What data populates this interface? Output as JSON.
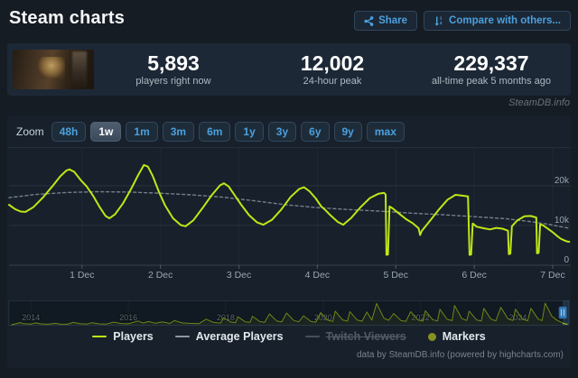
{
  "header": {
    "title": "Steam charts",
    "share_label": "Share",
    "compare_label": "Compare with others..."
  },
  "stats": {
    "items": [
      {
        "value": "5,893",
        "label": "players right now"
      },
      {
        "value": "12,002",
        "label": "24-hour peak"
      },
      {
        "value": "229,337",
        "label": "all-time peak 5 months ago"
      }
    ]
  },
  "watermark": "SteamDB.info",
  "toolbar": {
    "zoom_label": "Zoom",
    "ranges": [
      "48h",
      "1w",
      "1m",
      "3m",
      "6m",
      "1y",
      "3y",
      "6y",
      "9y",
      "max"
    ],
    "selected": "1w"
  },
  "legend": {
    "items": [
      {
        "label": "Players",
        "color": "#c0e616",
        "type": "line",
        "enabled": true
      },
      {
        "label": "Average Players",
        "color": "#8d99a3",
        "type": "line",
        "enabled": true
      },
      {
        "label": "Twitch Viewers",
        "color": "#46505a",
        "type": "line",
        "enabled": false
      },
      {
        "label": "Markers",
        "color": "#859222",
        "type": "circle",
        "enabled": true
      }
    ]
  },
  "footer": {
    "credit": "data by SteamDB.info (powered by highcharts.com)"
  },
  "colors": {
    "players_line": "#c0e616",
    "average_line": "#8d99a3",
    "grid": "rgba(255,255,255,0.08)",
    "axis_label": "#9aa6b0",
    "accent_blue": "#4ba0dd"
  },
  "chart_data": [
    {
      "type": "line",
      "id": "main",
      "x_unit": "days since 1 Dec 00:00",
      "xlim": [
        -0.93,
        6.23
      ],
      "ylim": [
        0,
        29500
      ],
      "x_ticks": [
        {
          "t": 0,
          "label": "1 Dec"
        },
        {
          "t": 1,
          "label": "2 Dec"
        },
        {
          "t": 2,
          "label": "3 Dec"
        },
        {
          "t": 3,
          "label": "4 Dec"
        },
        {
          "t": 4,
          "label": "5 Dec"
        },
        {
          "t": 5,
          "label": "6 Dec"
        },
        {
          "t": 6,
          "label": "7 Dec"
        }
      ],
      "y_ticks": [
        {
          "v": 0,
          "label": "0"
        },
        {
          "v": 10000,
          "label": "10k"
        },
        {
          "v": 20000,
          "label": "20k"
        }
      ],
      "series": [
        {
          "name": "Players",
          "color": "#c0e616",
          "width": 2,
          "dash": null,
          "points": [
            [
              -0.93,
              15200
            ],
            [
              -0.85,
              14100
            ],
            [
              -0.78,
              13500
            ],
            [
              -0.72,
              13400
            ],
            [
              -0.62,
              14600
            ],
            [
              -0.5,
              17000
            ],
            [
              -0.38,
              19800
            ],
            [
              -0.28,
              22300
            ],
            [
              -0.2,
              23800
            ],
            [
              -0.16,
              24100
            ],
            [
              -0.1,
              23500
            ],
            [
              -0.02,
              21500
            ],
            [
              0.06,
              19800
            ],
            [
              0.14,
              17500
            ],
            [
              0.22,
              14800
            ],
            [
              0.3,
              12400
            ],
            [
              0.35,
              11800
            ],
            [
              0.42,
              12800
            ],
            [
              0.52,
              15500
            ],
            [
              0.62,
              19000
            ],
            [
              0.72,
              22800
            ],
            [
              0.79,
              25200
            ],
            [
              0.84,
              24800
            ],
            [
              0.9,
              22500
            ],
            [
              0.98,
              18500
            ],
            [
              1.06,
              15000
            ],
            [
              1.16,
              11800
            ],
            [
              1.26,
              10100
            ],
            [
              1.32,
              9800
            ],
            [
              1.42,
              11300
            ],
            [
              1.54,
              14500
            ],
            [
              1.66,
              17800
            ],
            [
              1.76,
              20100
            ],
            [
              1.81,
              20600
            ],
            [
              1.87,
              19800
            ],
            [
              1.95,
              17500
            ],
            [
              2.03,
              15200
            ],
            [
              2.13,
              12600
            ],
            [
              2.23,
              10800
            ],
            [
              2.31,
              10200
            ],
            [
              2.42,
              11400
            ],
            [
              2.54,
              14000
            ],
            [
              2.66,
              17200
            ],
            [
              2.77,
              19200
            ],
            [
              2.83,
              19600
            ],
            [
              2.9,
              18600
            ],
            [
              2.98,
              16800
            ],
            [
              3.05,
              14800
            ],
            [
              3.1,
              13900
            ],
            [
              3.17,
              12500
            ],
            [
              3.26,
              10900
            ],
            [
              3.33,
              10200
            ],
            [
              3.43,
              11900
            ],
            [
              3.55,
              14600
            ],
            [
              3.67,
              16900
            ],
            [
              3.78,
              18000
            ],
            [
              3.85,
              18200
            ],
            [
              3.87,
              17800
            ],
            [
              3.88,
              2600
            ],
            [
              3.9,
              2700
            ],
            [
              3.92,
              14800
            ],
            [
              3.96,
              14300
            ],
            [
              4.04,
              13000
            ],
            [
              4.13,
              11600
            ],
            [
              4.22,
              10500
            ],
            [
              4.29,
              9300
            ],
            [
              4.31,
              7600
            ],
            [
              4.33,
              8600
            ],
            [
              4.42,
              10800
            ],
            [
              4.54,
              13800
            ],
            [
              4.66,
              16500
            ],
            [
              4.76,
              17700
            ],
            [
              4.85,
              17500
            ],
            [
              4.92,
              17300
            ],
            [
              4.94,
              2600
            ],
            [
              4.96,
              2700
            ],
            [
              4.98,
              10500
            ],
            [
              5.03,
              9700
            ],
            [
              5.12,
              9300
            ],
            [
              5.2,
              9000
            ],
            [
              5.28,
              9400
            ],
            [
              5.36,
              9200
            ],
            [
              5.43,
              8700
            ],
            [
              5.44,
              2800
            ],
            [
              5.46,
              2900
            ],
            [
              5.48,
              9800
            ],
            [
              5.55,
              11300
            ],
            [
              5.64,
              12300
            ],
            [
              5.72,
              12400
            ],
            [
              5.79,
              12000
            ],
            [
              5.8,
              3000
            ],
            [
              5.82,
              3100
            ],
            [
              5.84,
              10300
            ],
            [
              5.88,
              10000
            ],
            [
              5.93,
              9300
            ],
            [
              6.0,
              8300
            ],
            [
              6.06,
              7300
            ],
            [
              6.1,
              6700
            ],
            [
              6.14,
              6300
            ],
            [
              6.18,
              6000
            ],
            [
              6.21,
              5900
            ]
          ]
        },
        {
          "name": "Average Players",
          "color": "#8d99a3",
          "width": 1.4,
          "dash": "3,3",
          "points": [
            [
              -0.93,
              17000
            ],
            [
              -0.6,
              17800
            ],
            [
              -0.2,
              18300
            ],
            [
              0.2,
              18500
            ],
            [
              0.6,
              18400
            ],
            [
              1.0,
              18100
            ],
            [
              1.4,
              17700
            ],
            [
              1.8,
              17100
            ],
            [
              2.2,
              16200
            ],
            [
              2.6,
              15200
            ],
            [
              3.0,
              14500
            ],
            [
              3.4,
              14000
            ],
            [
              3.8,
              13600
            ],
            [
              4.2,
              13100
            ],
            [
              4.6,
              12700
            ],
            [
              5.0,
              12200
            ],
            [
              5.4,
              11700
            ],
            [
              5.7,
              11000
            ],
            [
              5.95,
              10300
            ],
            [
              6.1,
              9700
            ],
            [
              6.21,
              9300
            ]
          ]
        }
      ]
    },
    {
      "type": "area",
      "id": "navigator",
      "x_unit": "year",
      "xlim": [
        2013.55,
        2025.05
      ],
      "ylim": [
        0,
        240000
      ],
      "x_ticks": [
        {
          "t": 2014,
          "label": "2014"
        },
        {
          "t": 2016,
          "label": "2016"
        },
        {
          "t": 2018,
          "label": "2018"
        },
        {
          "t": 2020,
          "label": "2020"
        },
        {
          "t": 2022,
          "label": "2022"
        },
        {
          "t": 2024,
          "label": "2024"
        }
      ],
      "selected_range": {
        "from": 2024.92,
        "to": 2025.05
      },
      "series": [
        {
          "name": "Players (all time)",
          "color": "#c0e616",
          "width": 1,
          "points": [
            [
              2013.6,
              2000
            ],
            [
              2013.65,
              6000
            ],
            [
              2013.78,
              23000
            ],
            [
              2013.85,
              12000
            ],
            [
              2014.0,
              8000
            ],
            [
              2014.1,
              20000
            ],
            [
              2014.2,
              10000
            ],
            [
              2014.35,
              6000
            ],
            [
              2014.5,
              15000
            ],
            [
              2014.6,
              8000
            ],
            [
              2014.75,
              6000
            ],
            [
              2014.87,
              25000
            ],
            [
              2015.0,
              12000
            ],
            [
              2015.15,
              8000
            ],
            [
              2015.25,
              22000
            ],
            [
              2015.4,
              10000
            ],
            [
              2015.55,
              8000
            ],
            [
              2015.7,
              28000
            ],
            [
              2015.85,
              13000
            ],
            [
              2016.0,
              10000
            ],
            [
              2016.2,
              40000
            ],
            [
              2016.3,
              18000
            ],
            [
              2016.42,
              35000
            ],
            [
              2016.55,
              16000
            ],
            [
              2016.7,
              30000
            ],
            [
              2016.85,
              14000
            ],
            [
              2016.95,
              45000
            ],
            [
              2017.1,
              20000
            ],
            [
              2017.25,
              15000
            ],
            [
              2017.45,
              12000
            ],
            [
              2017.6,
              60000
            ],
            [
              2017.75,
              25000
            ],
            [
              2017.9,
              18000
            ],
            [
              2017.95,
              75000
            ],
            [
              2018.1,
              30000
            ],
            [
              2018.2,
              22000
            ],
            [
              2018.25,
              85000
            ],
            [
              2018.4,
              32000
            ],
            [
              2018.5,
              26000
            ],
            [
              2018.55,
              90000
            ],
            [
              2018.7,
              34000
            ],
            [
              2018.8,
              26000
            ],
            [
              2018.9,
              115000
            ],
            [
              2019.05,
              40000
            ],
            [
              2019.15,
              30000
            ],
            [
              2019.25,
              125000
            ],
            [
              2019.4,
              45000
            ],
            [
              2019.5,
              32000
            ],
            [
              2019.6,
              95000
            ],
            [
              2019.75,
              35000
            ],
            [
              2019.85,
              28000
            ],
            [
              2019.95,
              130000
            ],
            [
              2020.1,
              48000
            ],
            [
              2020.2,
              36000
            ],
            [
              2020.25,
              145000
            ],
            [
              2020.4,
              52000
            ],
            [
              2020.5,
              38000
            ],
            [
              2020.55,
              140000
            ],
            [
              2020.7,
              50000
            ],
            [
              2020.8,
              38000
            ],
            [
              2020.9,
              135000
            ],
            [
              2021.0,
              50000
            ],
            [
              2021.1,
              228000
            ],
            [
              2021.25,
              70000
            ],
            [
              2021.35,
              48000
            ],
            [
              2021.45,
              120000
            ],
            [
              2021.6,
              45000
            ],
            [
              2021.7,
              36000
            ],
            [
              2021.8,
              140000
            ],
            [
              2021.95,
              50000
            ],
            [
              2022.05,
              38000
            ],
            [
              2022.1,
              150000
            ],
            [
              2022.25,
              55000
            ],
            [
              2022.35,
              40000
            ],
            [
              2022.4,
              165000
            ],
            [
              2022.55,
              58000
            ],
            [
              2022.65,
              44000
            ],
            [
              2022.7,
              205000
            ],
            [
              2022.85,
              65000
            ],
            [
              2022.95,
              46000
            ],
            [
              2023.0,
              145000
            ],
            [
              2023.15,
              52000
            ],
            [
              2023.25,
              40000
            ],
            [
              2023.3,
              175000
            ],
            [
              2023.45,
              60000
            ],
            [
              2023.55,
              42000
            ],
            [
              2023.65,
              185000
            ],
            [
              2023.8,
              62000
            ],
            [
              2023.9,
              45000
            ],
            [
              2023.95,
              165000
            ],
            [
              2024.1,
              58000
            ],
            [
              2024.2,
              42000
            ],
            [
              2024.27,
              175000
            ],
            [
              2024.42,
              60000
            ],
            [
              2024.5,
              45000
            ],
            [
              2024.56,
              229000
            ],
            [
              2024.7,
              90000
            ],
            [
              2024.8,
              50000
            ],
            [
              2024.88,
              30000
            ],
            [
              2024.95,
              12000
            ],
            [
              2025.02,
              6000
            ]
          ]
        }
      ]
    }
  ]
}
